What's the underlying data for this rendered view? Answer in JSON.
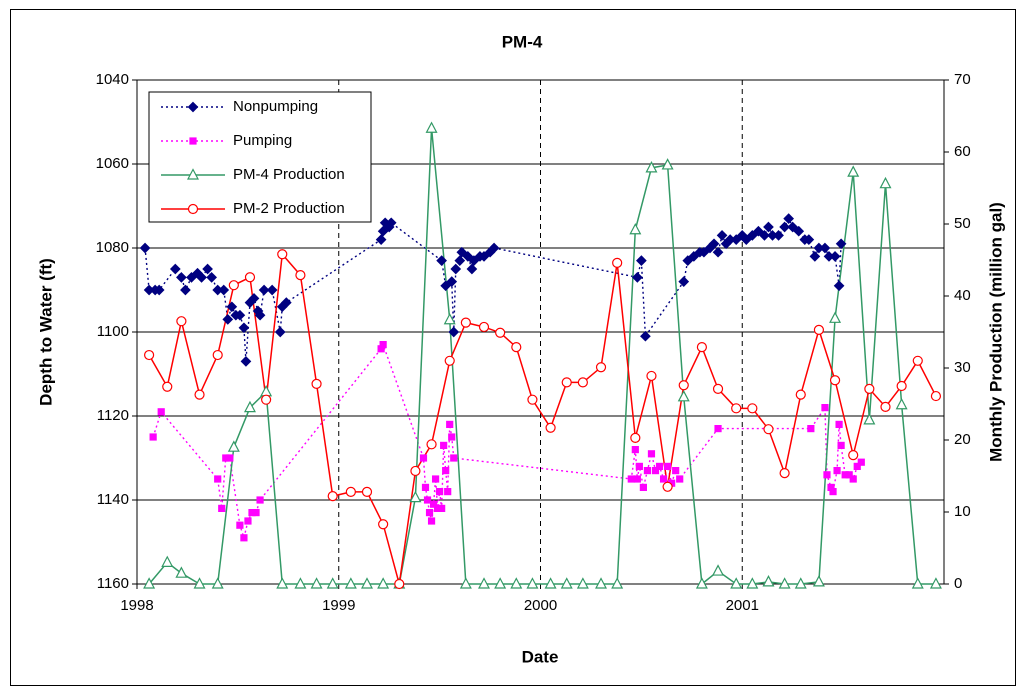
{
  "chart_data": {
    "type": "line",
    "title": "PM-4",
    "x_label": "Date",
    "y_label": "Depth to Water (ft)",
    "y2_label": "Monthly Production (million gal)",
    "xlim": [
      1998,
      2002
    ],
    "xticks": [
      1998,
      1999,
      2000,
      2001
    ],
    "ylim": [
      1160,
      1040
    ],
    "yticks": [
      1040,
      1060,
      1080,
      1100,
      1120,
      1140,
      1160
    ],
    "y2lim": [
      0,
      70
    ],
    "y2ticks": [
      0,
      10,
      20,
      30,
      40,
      50,
      60,
      70
    ],
    "grid": true,
    "x_grid_style": "dashed",
    "legend": "upper left",
    "series": [
      {
        "name": "Nonpumping",
        "color": "#000080",
        "marker": "diamond",
        "linestyle": "dotted",
        "axis": "y",
        "x": [
          1998.04,
          1998.06,
          1998.09,
          1998.11,
          1998.19,
          1998.22,
          1998.24,
          1998.27,
          1998.3,
          1998.32,
          1998.35,
          1998.37,
          1998.4,
          1998.43,
          1998.45,
          1998.47,
          1998.49,
          1998.51,
          1998.53,
          1998.54,
          1998.56,
          1998.58,
          1998.6,
          1998.61,
          1998.63,
          1998.67,
          1998.71,
          1998.72,
          1998.74,
          1999.21,
          1999.22,
          1999.23,
          1999.25,
          1999.26,
          1999.51,
          1999.53,
          1999.56,
          1999.57,
          1999.58,
          1999.6,
          1999.61,
          1999.64,
          1999.66,
          1999.67,
          1999.7,
          1999.72,
          1999.75,
          1999.77,
          2000.48,
          2000.5,
          2000.52,
          2000.71,
          2000.73,
          2000.76,
          2000.79,
          2000.81,
          2000.84,
          2000.86,
          2000.88,
          2000.9,
          2000.92,
          2000.94,
          2000.97,
          2001.0,
          2001.02,
          2001.05,
          2001.08,
          2001.11,
          2001.13,
          2001.15,
          2001.18,
          2001.21,
          2001.23,
          2001.25,
          2001.28,
          2001.31,
          2001.33,
          2001.36,
          2001.38,
          2001.41,
          2001.43,
          2001.46,
          2001.48,
          2001.49
        ],
        "values": [
          1080,
          1090,
          1090,
          1090,
          1085,
          1087,
          1090,
          1087,
          1086,
          1087,
          1085,
          1087,
          1090,
          1090,
          1097,
          1094,
          1096,
          1096,
          1099,
          1107,
          1093,
          1092,
          1095,
          1096,
          1090,
          1090,
          1100,
          1094,
          1093,
          1078,
          1076,
          1074,
          1075,
          1074,
          1083,
          1089,
          1088,
          1100,
          1085,
          1083,
          1081,
          1082,
          1085,
          1083,
          1082,
          1082,
          1081,
          1080,
          1087,
          1083,
          1101,
          1088,
          1083,
          1082,
          1081,
          1081,
          1080,
          1079,
          1081,
          1077,
          1079,
          1078,
          1078,
          1077,
          1078,
          1077,
          1076,
          1077,
          1075,
          1077,
          1077,
          1075,
          1073,
          1075,
          1076,
          1078,
          1078,
          1082,
          1080,
          1080,
          1082,
          1082,
          1089,
          1079
        ]
      },
      {
        "name": "Pumping",
        "color": "#ff00ff",
        "marker": "square",
        "linestyle": "dotted",
        "axis": "y",
        "x": [
          1998.08,
          1998.12,
          1998.4,
          1998.42,
          1998.44,
          1998.46,
          1998.51,
          1998.53,
          1998.55,
          1998.57,
          1998.59,
          1998.61,
          1999.21,
          1999.22,
          1999.42,
          1999.43,
          1999.44,
          1999.45,
          1999.46,
          1999.47,
          1999.48,
          1999.49,
          1999.5,
          1999.51,
          1999.52,
          1999.53,
          1999.54,
          1999.55,
          1999.56,
          1999.57,
          2000.45,
          2000.47,
          2000.48,
          2000.49,
          2000.51,
          2000.53,
          2000.55,
          2000.57,
          2000.59,
          2000.61,
          2000.63,
          2000.65,
          2000.67,
          2000.69,
          2000.88,
          2001.34,
          2001.41,
          2001.42,
          2001.44,
          2001.45,
          2001.47,
          2001.48,
          2001.49,
          2001.51,
          2001.53,
          2001.55,
          2001.57,
          2001.59
        ],
        "values": [
          1125,
          1119,
          1135,
          1142,
          1130,
          1130,
          1146,
          1149,
          1145,
          1143,
          1143,
          1140,
          1104,
          1103,
          1130,
          1137,
          1140,
          1143,
          1145,
          1141,
          1135,
          1142,
          1138,
          1142,
          1127,
          1133,
          1138,
          1122,
          1125,
          1130,
          1135,
          1128,
          1135,
          1132,
          1137,
          1133,
          1129,
          1133,
          1132,
          1135,
          1132,
          1136,
          1133,
          1135,
          1123,
          1123,
          1118,
          1134,
          1137,
          1138,
          1133,
          1122,
          1127,
          1134,
          1134,
          1135,
          1132,
          1131
        ]
      },
      {
        "name": "PM-4 Production",
        "color": "#339966",
        "marker": "triangle",
        "linestyle": "solid",
        "axis": "y2",
        "x": [
          1998.06,
          1998.15,
          1998.22,
          1998.31,
          1998.4,
          1998.48,
          1998.56,
          1998.64,
          1998.72,
          1998.81,
          1998.89,
          1998.97,
          1999.06,
          1999.14,
          1999.22,
          1999.3,
          1999.38,
          1999.46,
          1999.55,
          1999.63,
          1999.72,
          1999.8,
          1999.88,
          1999.96,
          2000.05,
          2000.13,
          2000.21,
          2000.3,
          2000.38,
          2000.47,
          2000.55,
          2000.63,
          2000.71,
          2000.8,
          2000.88,
          2000.97,
          2001.05,
          2001.13,
          2001.21,
          2001.29,
          2001.38,
          2001.46,
          2001.55,
          2001.63,
          2001.71,
          2001.79,
          2001.87,
          2001.96
        ],
        "values": [
          0,
          3,
          1.5,
          0,
          0,
          19,
          24.5,
          26.7,
          0,
          0,
          0,
          0,
          0,
          0,
          0,
          0,
          12,
          63.3,
          36.7,
          0,
          0,
          0,
          0,
          0,
          0,
          0,
          0,
          0,
          0,
          49.2,
          57.8,
          58.2,
          26,
          0,
          1.8,
          0,
          0,
          0.3,
          0,
          0,
          0.3,
          36.9,
          57.2,
          22.8,
          55.6,
          24.9,
          0,
          0
        ]
      },
      {
        "name": "PM-2 Production",
        "color": "#ff0000",
        "marker": "circle",
        "linestyle": "solid",
        "axis": "y2",
        "x": [
          1998.06,
          1998.15,
          1998.22,
          1998.31,
          1998.4,
          1998.48,
          1998.56,
          1998.64,
          1998.72,
          1998.81,
          1998.89,
          1998.97,
          1999.06,
          1999.14,
          1999.22,
          1999.3,
          1999.38,
          1999.46,
          1999.55,
          1999.63,
          1999.72,
          1999.8,
          1999.88,
          1999.96,
          2000.05,
          2000.13,
          2000.21,
          2000.3,
          2000.38,
          2000.47,
          2000.55,
          2000.63,
          2000.71,
          2000.8,
          2000.88,
          2000.97,
          2001.05,
          2001.13,
          2001.21,
          2001.29,
          2001.38,
          2001.46,
          2001.55,
          2001.63,
          2001.71,
          2001.79,
          2001.87,
          2001.96
        ],
        "values": [
          31.8,
          27.4,
          36.5,
          26.3,
          31.8,
          41.5,
          42.6,
          25.6,
          45.8,
          42.9,
          27.8,
          12.2,
          12.8,
          12.8,
          8.3,
          0,
          15.7,
          19.4,
          31,
          36.3,
          35.7,
          34.9,
          32.9,
          25.6,
          21.7,
          28,
          28,
          30.1,
          44.6,
          20.3,
          28.9,
          13.5,
          27.6,
          32.9,
          27.1,
          24.4,
          24.4,
          21.5,
          15.4,
          26.3,
          35.3,
          28.3,
          17.9,
          27.1,
          24.6,
          27.5,
          31,
          26.1
        ]
      }
    ]
  }
}
